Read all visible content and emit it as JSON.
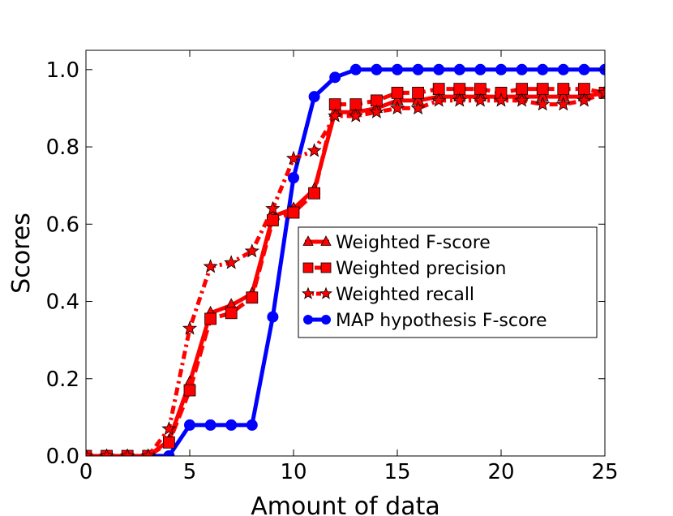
{
  "chart_data": {
    "type": "line",
    "title": "",
    "xlabel": "Amount of data",
    "ylabel": "Scores",
    "xlim": [
      0,
      25
    ],
    "ylim": [
      0,
      1.05
    ],
    "xticks": [
      "0",
      "5",
      "10",
      "15",
      "20",
      "25"
    ],
    "yticks": [
      "0.0",
      "0.2",
      "0.4",
      "0.6",
      "0.8",
      "1.0"
    ],
    "grid": false,
    "legend_position": "center-right",
    "x": [
      0,
      1,
      2,
      3,
      4,
      5,
      6,
      7,
      8,
      9,
      10,
      11,
      12,
      13,
      14,
      15,
      16,
      17,
      18,
      19,
      20,
      21,
      22,
      23,
      24,
      25
    ],
    "series": [
      {
        "name": "Weighted F-score",
        "color": "#ff0000",
        "line_style": "solid",
        "marker": "triangle",
        "values": [
          0.0,
          0.0,
          0.0,
          0.0,
          0.04,
          0.19,
          0.37,
          0.39,
          0.42,
          0.62,
          0.64,
          0.69,
          0.89,
          0.89,
          0.9,
          0.92,
          0.92,
          0.93,
          0.93,
          0.93,
          0.93,
          0.93,
          0.93,
          0.93,
          0.93,
          0.94
        ]
      },
      {
        "name": "Weighted precision",
        "color": "#ff0000",
        "line_style": "dashed",
        "marker": "square",
        "values": [
          0.0,
          0.0,
          0.0,
          0.0,
          0.035,
          0.17,
          0.355,
          0.37,
          0.41,
          0.61,
          0.63,
          0.68,
          0.91,
          0.91,
          0.92,
          0.94,
          0.94,
          0.95,
          0.95,
          0.95,
          0.94,
          0.95,
          0.95,
          0.95,
          0.95,
          0.94
        ]
      },
      {
        "name": "Weighted recall",
        "color": "#ff0000",
        "line_style": "dashdot",
        "marker": "star",
        "values": [
          0.0,
          0.0,
          0.0,
          0.0,
          0.07,
          0.33,
          0.49,
          0.5,
          0.53,
          0.64,
          0.77,
          0.79,
          0.88,
          0.88,
          0.89,
          0.9,
          0.9,
          0.92,
          0.92,
          0.92,
          0.92,
          0.92,
          0.91,
          0.91,
          0.92,
          0.94
        ]
      },
      {
        "name": "MAP hypothesis F-score",
        "color": "#0000ff",
        "line_style": "solid",
        "marker": "circle",
        "values": [
          0.0,
          0.0,
          0.0,
          0.0,
          0.0,
          0.08,
          0.08,
          0.08,
          0.08,
          0.36,
          0.72,
          0.93,
          0.98,
          1.0,
          1.0,
          1.0,
          1.0,
          1.0,
          1.0,
          1.0,
          1.0,
          1.0,
          1.0,
          1.0,
          1.0,
          1.0
        ]
      }
    ]
  }
}
